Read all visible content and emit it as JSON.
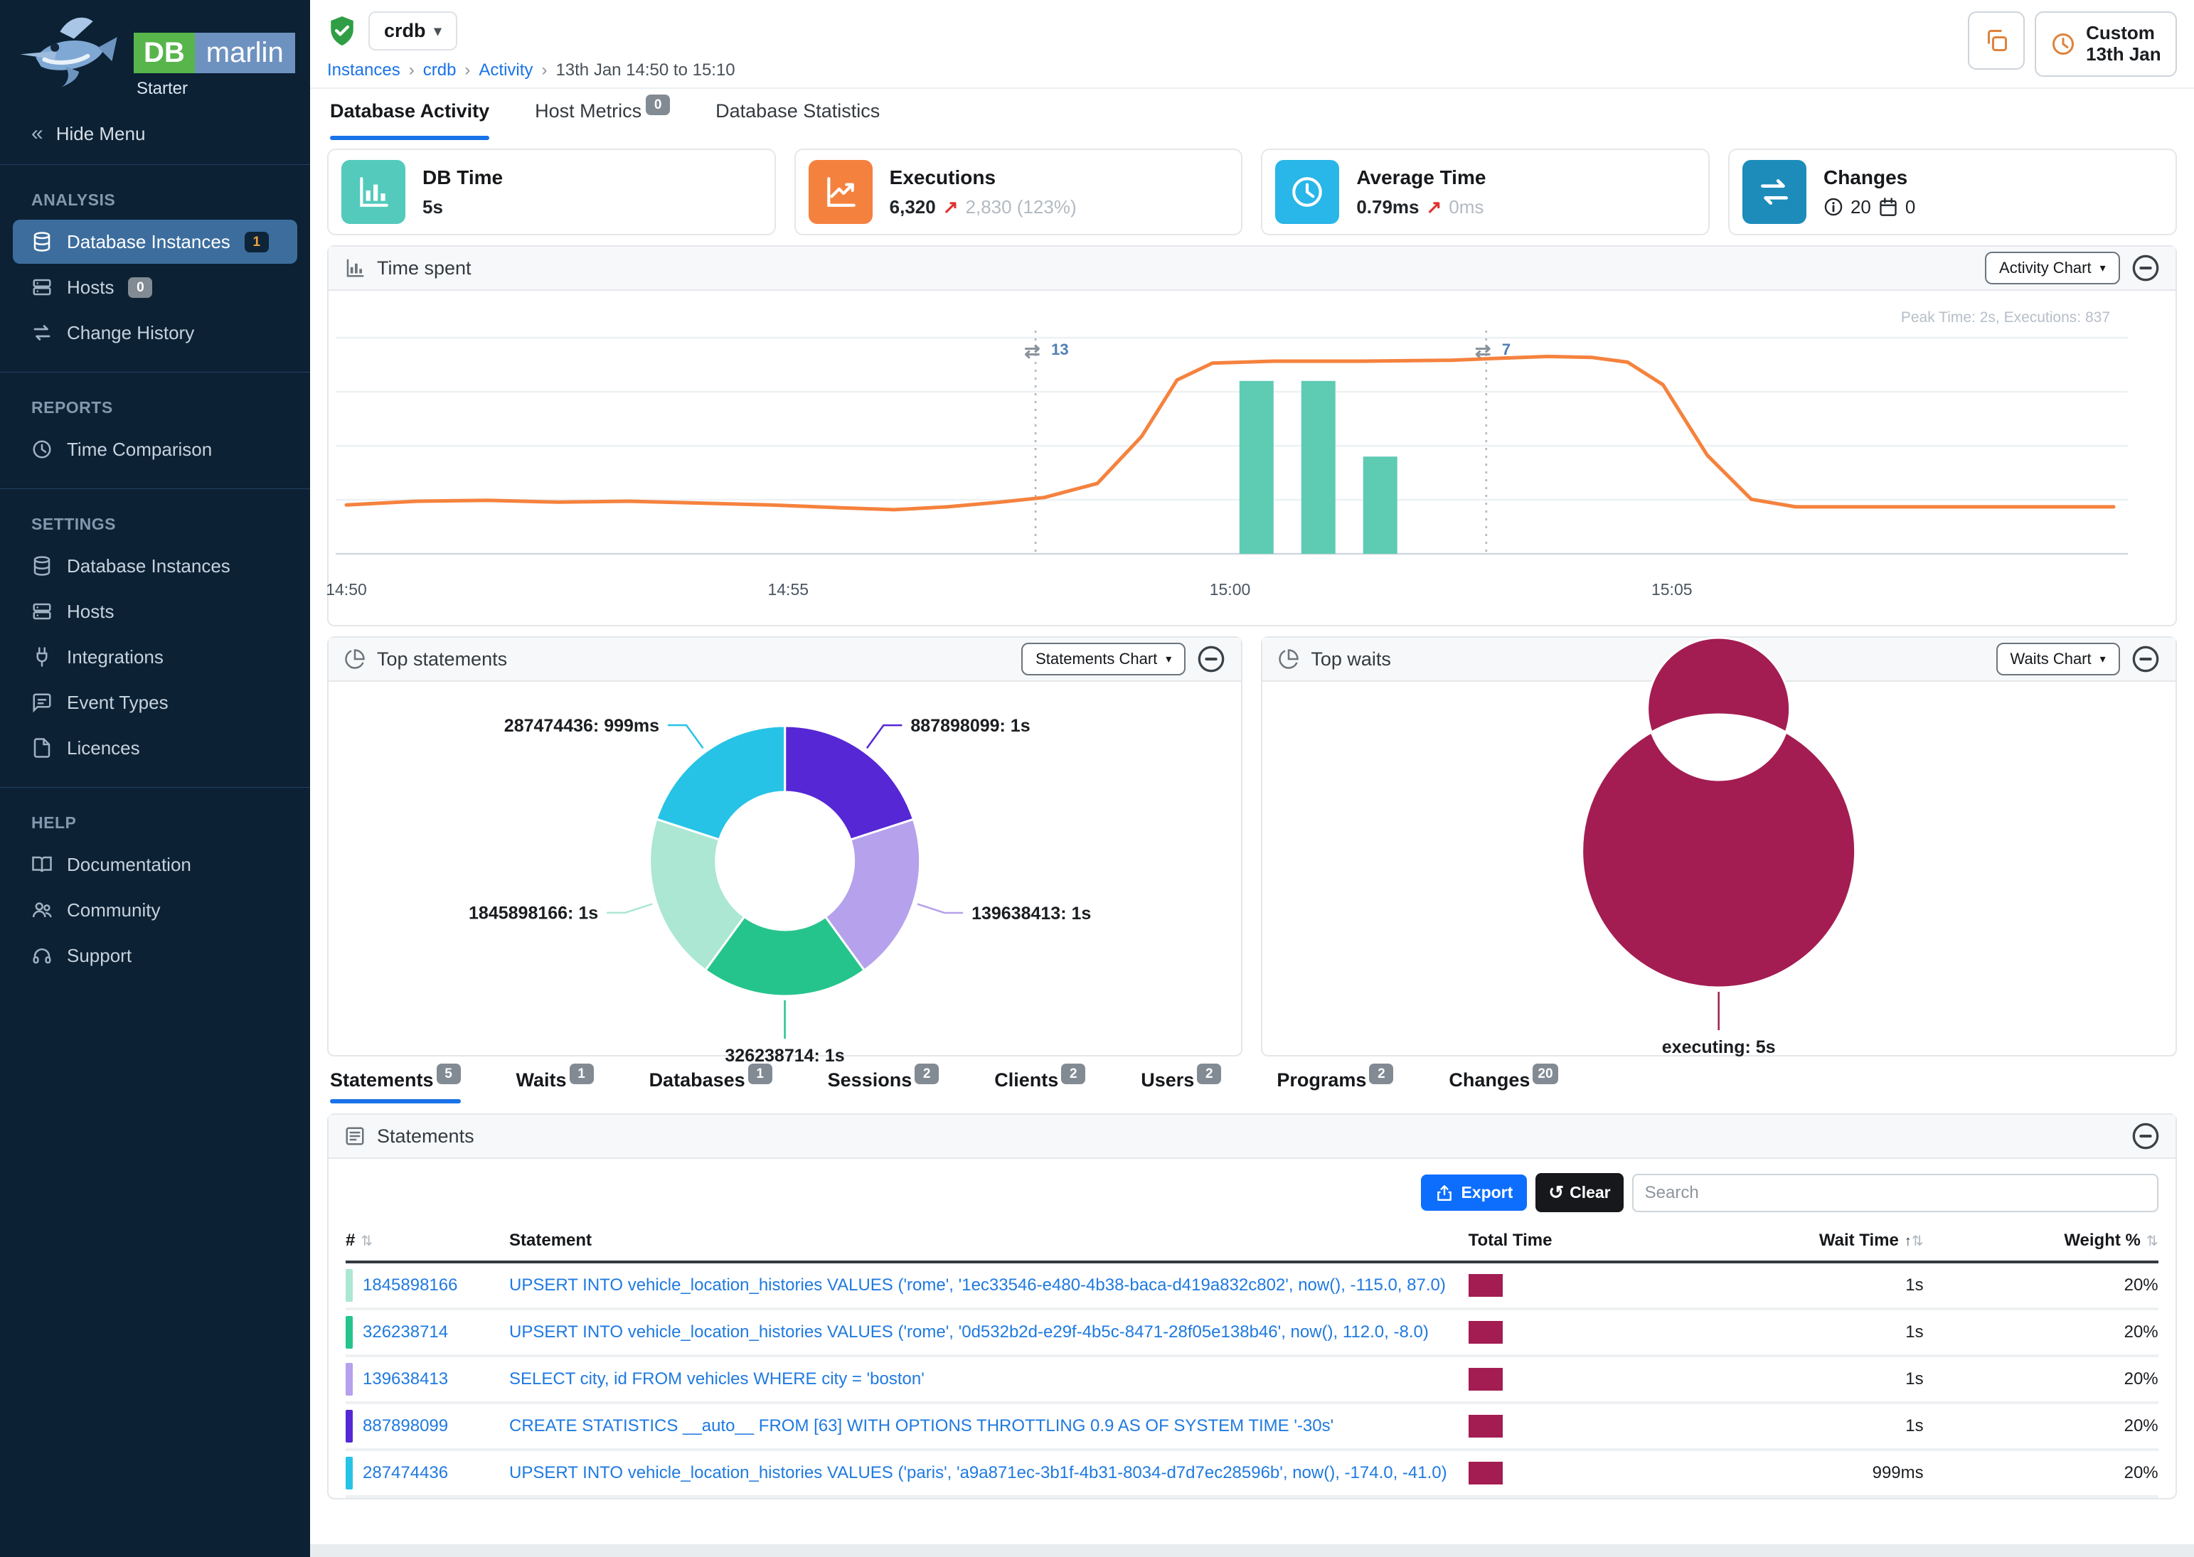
{
  "brand": {
    "db": "DB",
    "marlin": "marlin",
    "edition": "Starter"
  },
  "topbar": {
    "instance_selector": "crdb",
    "breadcrumb": [
      {
        "label": "Instances",
        "link": true
      },
      {
        "label": "crdb",
        "link": true
      },
      {
        "label": "Activity",
        "link": true
      },
      {
        "label": "13th Jan 14:50 to 15:10",
        "link": false
      }
    ],
    "time_button": {
      "line1": "Custom",
      "line2": "13th Jan"
    }
  },
  "sidebar": {
    "hide_menu": "Hide Menu",
    "groups": [
      {
        "title": "ANALYSIS",
        "items": [
          {
            "label": "Database Instances",
            "icon": "database",
            "badge": "1",
            "badge_style": "navy",
            "active": true
          },
          {
            "label": "Hosts",
            "icon": "server",
            "badge": "0",
            "badge_style": "gray"
          },
          {
            "label": "Change History",
            "icon": "swap"
          }
        ]
      },
      {
        "title": "REPORTS",
        "items": [
          {
            "label": "Time Comparison",
            "icon": "clock"
          }
        ]
      },
      {
        "title": "SETTINGS",
        "items": [
          {
            "label": "Database Instances",
            "icon": "database"
          },
          {
            "label": "Hosts",
            "icon": "server"
          },
          {
            "label": "Integrations",
            "icon": "plug"
          },
          {
            "label": "Event Types",
            "icon": "event"
          },
          {
            "label": "Licences",
            "icon": "licence"
          }
        ]
      },
      {
        "title": "HELP",
        "items": [
          {
            "label": "Documentation",
            "icon": "book"
          },
          {
            "label": "Community",
            "icon": "people"
          },
          {
            "label": "Support",
            "icon": "headset"
          }
        ]
      }
    ]
  },
  "main_tabs": [
    {
      "label": "Database Activity",
      "active": true
    },
    {
      "label": "Host Metrics",
      "badge": "0"
    },
    {
      "label": "Database Statistics"
    }
  ],
  "kpis": [
    {
      "title": "DB Time",
      "icon": "barchart",
      "icon_bg": "#53cabc",
      "value": "5s"
    },
    {
      "title": "Executions",
      "icon": "trend",
      "icon_bg": "#f5813e",
      "value": "6,320",
      "delta_arrow": "↗",
      "delta": "2,830 (123%)"
    },
    {
      "title": "Average Time",
      "icon": "clock",
      "icon_bg": "#29b6e8",
      "value": "0.79ms",
      "delta_arrow": "↗",
      "delta": "0ms"
    },
    {
      "title": "Changes",
      "icon": "swap",
      "icon_bg": "#1d8cba",
      "info_count": "20",
      "calendar_count": "0"
    }
  ],
  "panels": {
    "time_spent": {
      "title": "Time spent",
      "chart_button": "Activity Chart",
      "note": "Peak Time: 2s, Executions: 837"
    },
    "top_statements": {
      "title": "Top statements",
      "chart_button": "Statements Chart"
    },
    "top_waits": {
      "title": "Top waits",
      "chart_button": "Waits Chart"
    },
    "statements": {
      "title": "Statements",
      "export_label": "Export",
      "clear_label": "Clear",
      "search_placeholder": "Search",
      "columns": [
        {
          "label": "#",
          "sortable": true,
          "align": "left"
        },
        {
          "label": "Statement",
          "sortable": false,
          "align": "left"
        },
        {
          "label": "Total Time",
          "sortable": false,
          "align": "left"
        },
        {
          "label": "Wait Time",
          "sortable": true,
          "sorted": true,
          "align": "right"
        },
        {
          "label": "Weight %",
          "sortable": true,
          "align": "right"
        }
      ],
      "rows": [
        {
          "id": "1845898166",
          "color": "#abe7d2",
          "statement": "UPSERT INTO vehicle_location_histories VALUES ('rome', '1ec33546-e480-4b38-baca-d419a832c802', now(), -115.0, 87.0)",
          "total_time_fraction": 1,
          "wait_time": "1s",
          "weight": "20%"
        },
        {
          "id": "326238714",
          "color": "#25c48c",
          "statement": "UPSERT INTO vehicle_location_histories VALUES ('rome', '0d532b2d-e29f-4b5c-8471-28f05e138b46', now(), 112.0, -8.0)",
          "total_time_fraction": 1,
          "wait_time": "1s",
          "weight": "20%"
        },
        {
          "id": "139638413",
          "color": "#b5a1ec",
          "statement": "SELECT city, id FROM vehicles WHERE city = 'boston'",
          "total_time_fraction": 1,
          "wait_time": "1s",
          "weight": "20%"
        },
        {
          "id": "887898099",
          "color": "#5627d4",
          "statement": "CREATE STATISTICS __auto__ FROM [63] WITH OPTIONS THROTTLING 0.9 AS OF SYSTEM TIME '-30s'",
          "total_time_fraction": 1,
          "wait_time": "1s",
          "weight": "20%"
        },
        {
          "id": "287474436",
          "color": "#27c3e6",
          "statement": "UPSERT INTO vehicle_location_histories VALUES ('paris', 'a9a871ec-3b1f-4b31-8034-d7d7ec28596b', now(), -174.0, -41.0)",
          "total_time_fraction": 0.999,
          "wait_time": "999ms",
          "weight": "20%"
        }
      ]
    }
  },
  "bottom_tabs": [
    {
      "label": "Statements",
      "badge": "5",
      "active": true
    },
    {
      "label": "Waits",
      "badge": "1"
    },
    {
      "label": "Databases",
      "badge": "1"
    },
    {
      "label": "Sessions",
      "badge": "2"
    },
    {
      "label": "Clients",
      "badge": "2"
    },
    {
      "label": "Users",
      "badge": "2"
    },
    {
      "label": "Programs",
      "badge": "2"
    },
    {
      "label": "Changes",
      "badge": "20"
    }
  ],
  "chart_data": [
    {
      "id": "time-spent",
      "type": "line+bar",
      "title": "Time spent",
      "note": "Peak Time: 2s, Executions: 837",
      "x_ticks": [
        {
          "minutes": 0,
          "label": "14:50"
        },
        {
          "minutes": 5,
          "label": "14:55"
        },
        {
          "minutes": 10,
          "label": "15:00"
        },
        {
          "minutes": 15,
          "label": "15:05"
        }
      ],
      "x_range_minutes": [
        0,
        20
      ],
      "ylim_seconds": [
        0,
        2.3
      ],
      "line_series": {
        "name": "DB Time (seconds)",
        "color": "#f5823e",
        "points": [
          [
            0,
            0.52
          ],
          [
            0.8,
            0.56
          ],
          [
            1.6,
            0.57
          ],
          [
            2.4,
            0.55
          ],
          [
            3.2,
            0.56
          ],
          [
            4.0,
            0.54
          ],
          [
            4.8,
            0.52
          ],
          [
            5.6,
            0.49
          ],
          [
            6.2,
            0.47
          ],
          [
            6.8,
            0.5
          ],
          [
            7.4,
            0.55
          ],
          [
            7.9,
            0.6
          ],
          [
            8.5,
            0.75
          ],
          [
            9.0,
            1.25
          ],
          [
            9.4,
            1.85
          ],
          [
            9.8,
            2.03
          ],
          [
            10.5,
            2.05
          ],
          [
            11.5,
            2.05
          ],
          [
            12.5,
            2.06
          ],
          [
            13.0,
            2.08
          ],
          [
            13.6,
            2.1
          ],
          [
            14.1,
            2.09
          ],
          [
            14.5,
            2.04
          ],
          [
            14.9,
            1.8
          ],
          [
            15.4,
            1.05
          ],
          [
            15.9,
            0.58
          ],
          [
            16.4,
            0.5
          ],
          [
            17.5,
            0.5
          ],
          [
            18.5,
            0.5
          ],
          [
            20,
            0.5
          ]
        ]
      },
      "bar_series": {
        "name": "Executions",
        "color": "#5ecbb3",
        "axis_max": 1000,
        "bars": [
          [
            10.3,
            800
          ],
          [
            11.0,
            800
          ],
          [
            11.7,
            450
          ]
        ]
      },
      "annotations": [
        {
          "x_minutes": 7.8,
          "count": "13"
        },
        {
          "x_minutes": 12.9,
          "count": "7"
        }
      ]
    },
    {
      "id": "top-statements",
      "type": "donut",
      "title": "Top statements",
      "slices": [
        {
          "label": "887898099: 1s",
          "value": 1,
          "color": "#5627d4"
        },
        {
          "label": "139638413: 1s",
          "value": 1,
          "color": "#b5a1ec"
        },
        {
          "label": "326238714: 1s",
          "value": 1,
          "color": "#25c48c"
        },
        {
          "label": "1845898166: 1s",
          "value": 1,
          "color": "#abe7d2"
        },
        {
          "label": "287474436: 999ms",
          "value": 0.999,
          "color": "#27c3e6"
        }
      ]
    },
    {
      "id": "top-waits",
      "type": "donut",
      "title": "Top waits",
      "slices": [
        {
          "label": "executing: 5s",
          "value": 5,
          "color": "#a31d52"
        }
      ]
    }
  ]
}
